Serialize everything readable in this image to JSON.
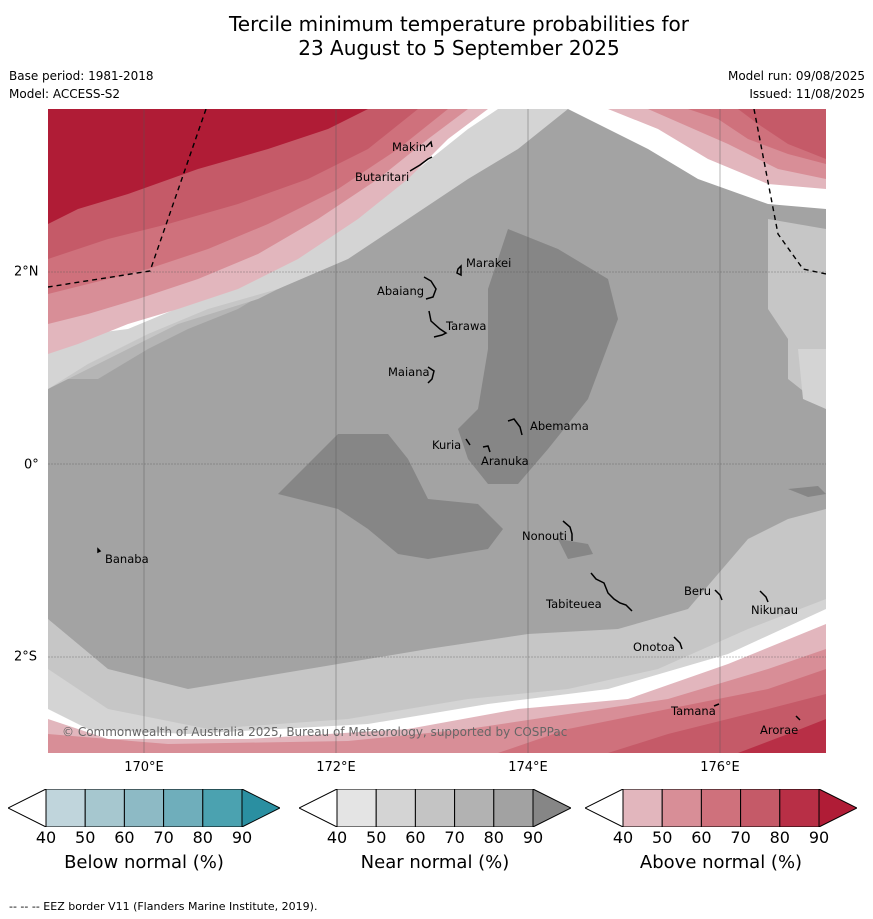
{
  "header": {
    "title_line1": "Tercile minimum temperature probabilities for",
    "title_line2": "23 August to 5 September 2025",
    "base_period": "Base period: 1981-2018",
    "model": "Model: ACCESS-S2",
    "model_run": "Model run: 09/08/2025",
    "issued": "Issued: 11/08/2025"
  },
  "map": {
    "lon_ticks": [
      "170°E",
      "172°E",
      "174°E",
      "176°E"
    ],
    "lat_ticks": [
      "2°N",
      "0°",
      "2°S"
    ],
    "places": [
      "Makin",
      "Butaritari",
      "Marakei",
      "Abaiang",
      "Tarawa",
      "Maiana",
      "Abemama",
      "Kuria",
      "Aranuka",
      "Nonouti",
      "Banaba",
      "Tabiteuea",
      "Beru",
      "Nikunau",
      "Onotoa",
      "Tamana",
      "Arorae"
    ],
    "copyright": "© Commonwealth of Australia 2025, Bureau of Meteorology, supported by COSPPac"
  },
  "colorbars": [
    {
      "label": "Below normal (%)",
      "ticks": [
        "40",
        "50",
        "60",
        "70",
        "80",
        "90"
      ],
      "colors": [
        "#ffffff",
        "#c0d5dc",
        "#a6c7cf",
        "#8dbac5",
        "#6faebb",
        "#4ba2b0",
        "#2a8fa1"
      ]
    },
    {
      "label": "Near normal (%)",
      "ticks": [
        "40",
        "50",
        "60",
        "70",
        "80",
        "90"
      ],
      "colors": [
        "#ffffff",
        "#e4e4e4",
        "#d4d4d4",
        "#c4c4c4",
        "#b2b2b2",
        "#a2a2a2",
        "#868686"
      ]
    },
    {
      "label": "Above normal (%)",
      "ticks": [
        "40",
        "50",
        "60",
        "70",
        "80",
        "90"
      ],
      "colors": [
        "#ffffff",
        "#e2b6bd",
        "#d88e97",
        "#cf717c",
        "#c55a68",
        "#b82f46",
        "#b01c36"
      ]
    }
  ],
  "footnote": "--  --  -- EEZ border V11 (Flanders Marine Institute, 2019)."
}
